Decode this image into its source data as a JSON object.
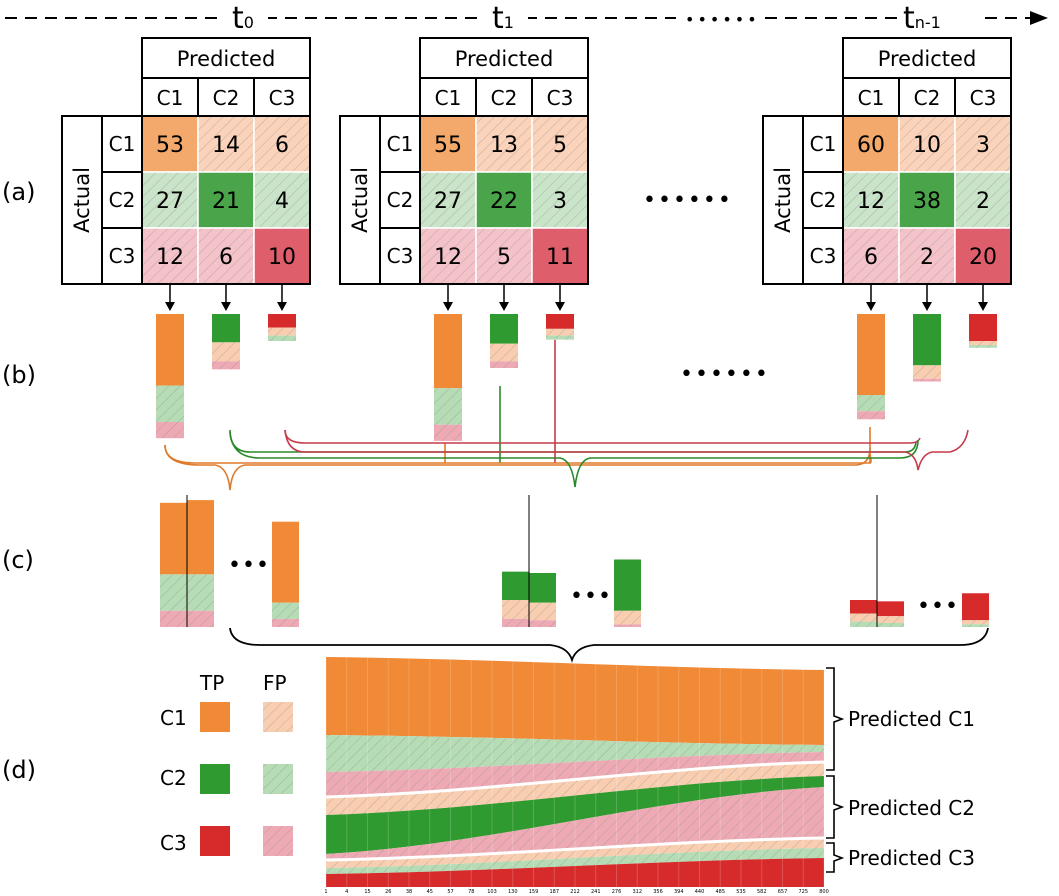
{
  "timeline": {
    "labels": [
      {
        "base": "t",
        "sub": "0"
      },
      {
        "base": "t",
        "sub": "1"
      },
      {
        "base": "t",
        "sub": "n-1"
      }
    ],
    "gap_marker": "••••••"
  },
  "rows": {
    "a": "(a)",
    "b": "(b)",
    "c": "(c)",
    "d": "(d)"
  },
  "matrix_labels": {
    "predicted": "Predicted",
    "actual": "Actual",
    "classes": [
      "C1",
      "C2",
      "C3"
    ]
  },
  "matrices": [
    {
      "time": "t0",
      "cells": [
        [
          53,
          14,
          6
        ],
        [
          27,
          21,
          4
        ],
        [
          12,
          6,
          10
        ]
      ]
    },
    {
      "time": "t1",
      "cells": [
        [
          55,
          13,
          5
        ],
        [
          27,
          22,
          3
        ],
        [
          12,
          5,
          11
        ]
      ]
    },
    {
      "time": "tn-1",
      "cells": [
        [
          60,
          10,
          3
        ],
        [
          12,
          38,
          2
        ],
        [
          6,
          2,
          20
        ]
      ]
    }
  ],
  "ellipsis": {
    "matrices": "••••••",
    "bars": "••••••",
    "grouped": "•••"
  },
  "legend": {
    "tp": "TP",
    "fp": "FP",
    "classes": [
      "C1",
      "C2",
      "C3"
    ]
  },
  "streamgraph": {
    "group_labels": [
      "Predicted C1",
      "Predicted C2",
      "Predicted C3"
    ],
    "x_ticks": [
      "1",
      "4",
      "15",
      "26",
      "38",
      "45",
      "57",
      "78",
      "103",
      "130",
      "159",
      "187",
      "212",
      "241",
      "276",
      "312",
      "356",
      "394",
      "440",
      "485",
      "535",
      "582",
      "657",
      "725",
      "800"
    ]
  },
  "colors": {
    "c1_tp": "#f08a36",
    "c1_fp": "#f9ceb0",
    "c2_tp": "#2f9a2f",
    "c2_fp": "#b5dcb5",
    "c3_tp": "#d72b2b",
    "c3_fp": "#eeaab4",
    "c1_diag_cell": "#f3a86c",
    "c2_diag_cell": "#4aa54a",
    "c3_diag_cell": "#df5e6c",
    "c1_off_cell": "#fbd3bb",
    "c2_off_cell": "#c9e4c9",
    "c3_off_cell": "#f4c3c9"
  }
}
